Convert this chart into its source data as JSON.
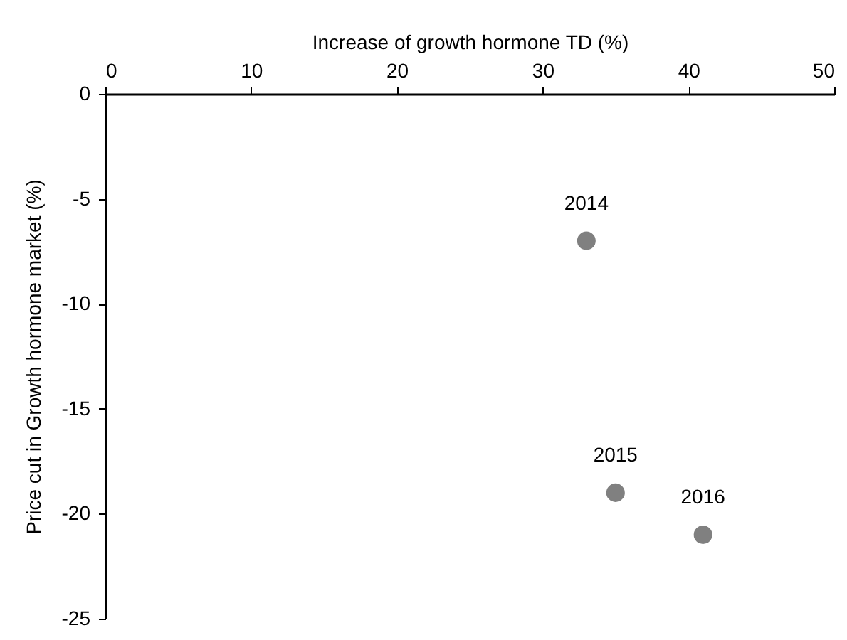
{
  "chart_data": {
    "type": "scatter",
    "xlabel": "Increase of growth hormone TD (%)",
    "ylabel": "Price cut in Growth hormone market  (%)",
    "x": [
      33,
      35,
      41
    ],
    "series": [
      {
        "color": "#808080",
        "values": [
          -7,
          -19,
          -21
        ]
      }
    ],
    "marker": "circle",
    "xlim": [
      0,
      50
    ],
    "xticks": [
      0,
      10,
      20,
      30,
      40,
      50
    ],
    "ylim": [
      -25,
      0
    ],
    "yticks": [
      -25,
      -20,
      -15,
      -10,
      -5,
      0
    ],
    "grid": false,
    "annotations": [
      {
        "text": "2014",
        "x": 33,
        "y": -7
      },
      {
        "text": "2015",
        "x": 35,
        "y": -19
      },
      {
        "text": "2016",
        "x": 41,
        "y": -21
      }
    ]
  }
}
